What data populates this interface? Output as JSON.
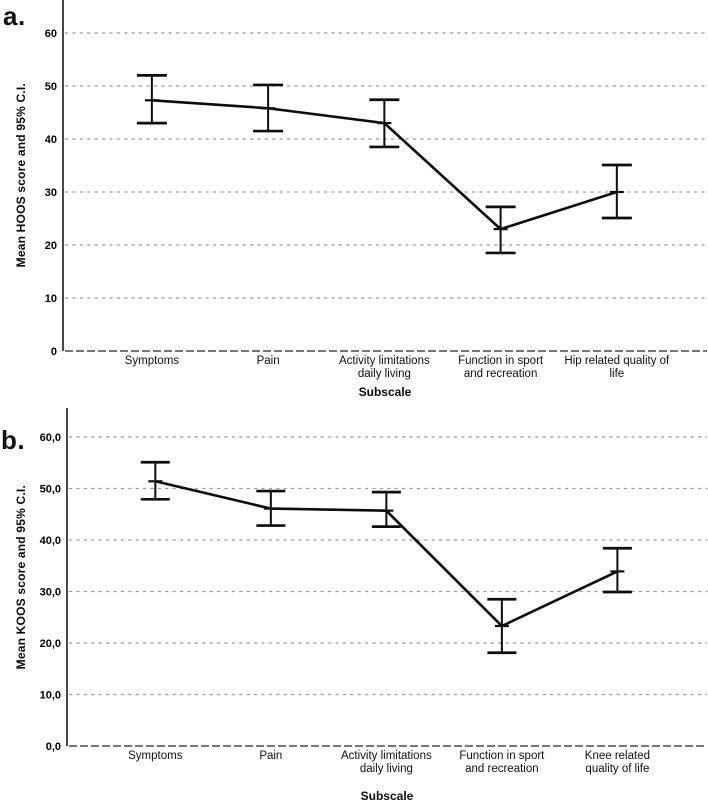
{
  "colors": {
    "series_line": "#0d0d0d",
    "gridline": "#9c9c9c",
    "axis_line": "#3f3f3f",
    "text": "#000000",
    "background": "#ffffff"
  },
  "chart_data": [
    {
      "id": "a",
      "panel_label": "a.",
      "type": "line",
      "title": "",
      "xlabel": "Subscale",
      "ylabel": "Mean HOOS score and 95% C.I.",
      "legend": "none",
      "grid": "horizontal-dotted",
      "ylim": [
        0,
        66
      ],
      "y_tick_values": [
        0,
        10,
        20,
        30,
        40,
        50,
        60
      ],
      "y_tick_labels": [
        "0",
        "10",
        "20",
        "30",
        "40",
        "50",
        "60"
      ],
      "categories": [
        "Symptoms",
        "Pain",
        "Activity limitations daily living",
        "Function in sport and recreation",
        "Hip related quality of life"
      ],
      "category_label_lines": [
        [
          "Symptoms"
        ],
        [
          "Pain"
        ],
        [
          "Activity limitations",
          "daily living"
        ],
        [
          "Function in sport",
          "and recreation"
        ],
        [
          "Hip related quality of",
          "life"
        ]
      ],
      "series": [
        {
          "name": "Mean HOOS score",
          "values": [
            47.3,
            45.8,
            43.0,
            23.0,
            30.0
          ],
          "ci_low": [
            43.0,
            41.5,
            38.5,
            18.5,
            25.1
          ],
          "ci_high": [
            52.0,
            50.2,
            47.4,
            27.2,
            35.1
          ]
        }
      ]
    },
    {
      "id": "b",
      "panel_label": "b.",
      "type": "line",
      "title": "",
      "xlabel": "Subscale",
      "ylabel": "Mean KOOS score and 95% C.I.",
      "legend": "none",
      "grid": "horizontal-dotted",
      "ylim": [
        0,
        66
      ],
      "y_tick_values": [
        0,
        10,
        20,
        30,
        40,
        50,
        60
      ],
      "y_tick_labels": [
        "0,0",
        "10,0",
        "20,0",
        "30,0",
        "40,0",
        "50,0",
        "60,0"
      ],
      "categories": [
        "Symptoms",
        "Pain",
        "Activity limitations daily living",
        "Function in sport and recreation",
        "Knee related quality of life"
      ],
      "category_label_lines": [
        [
          "Symptoms"
        ],
        [
          "Pain"
        ],
        [
          "Activity limitations",
          "daily living"
        ],
        [
          "Function in sport",
          "and recreation"
        ],
        [
          "Knee related",
          "quality of life"
        ]
      ],
      "series": [
        {
          "name": "Mean KOOS score",
          "values": [
            51.4,
            46.1,
            45.7,
            23.3,
            33.9
          ],
          "ci_low": [
            47.9,
            42.8,
            42.6,
            18.1,
            29.9
          ],
          "ci_high": [
            55.1,
            49.5,
            49.3,
            28.5,
            38.4
          ]
        }
      ]
    }
  ]
}
